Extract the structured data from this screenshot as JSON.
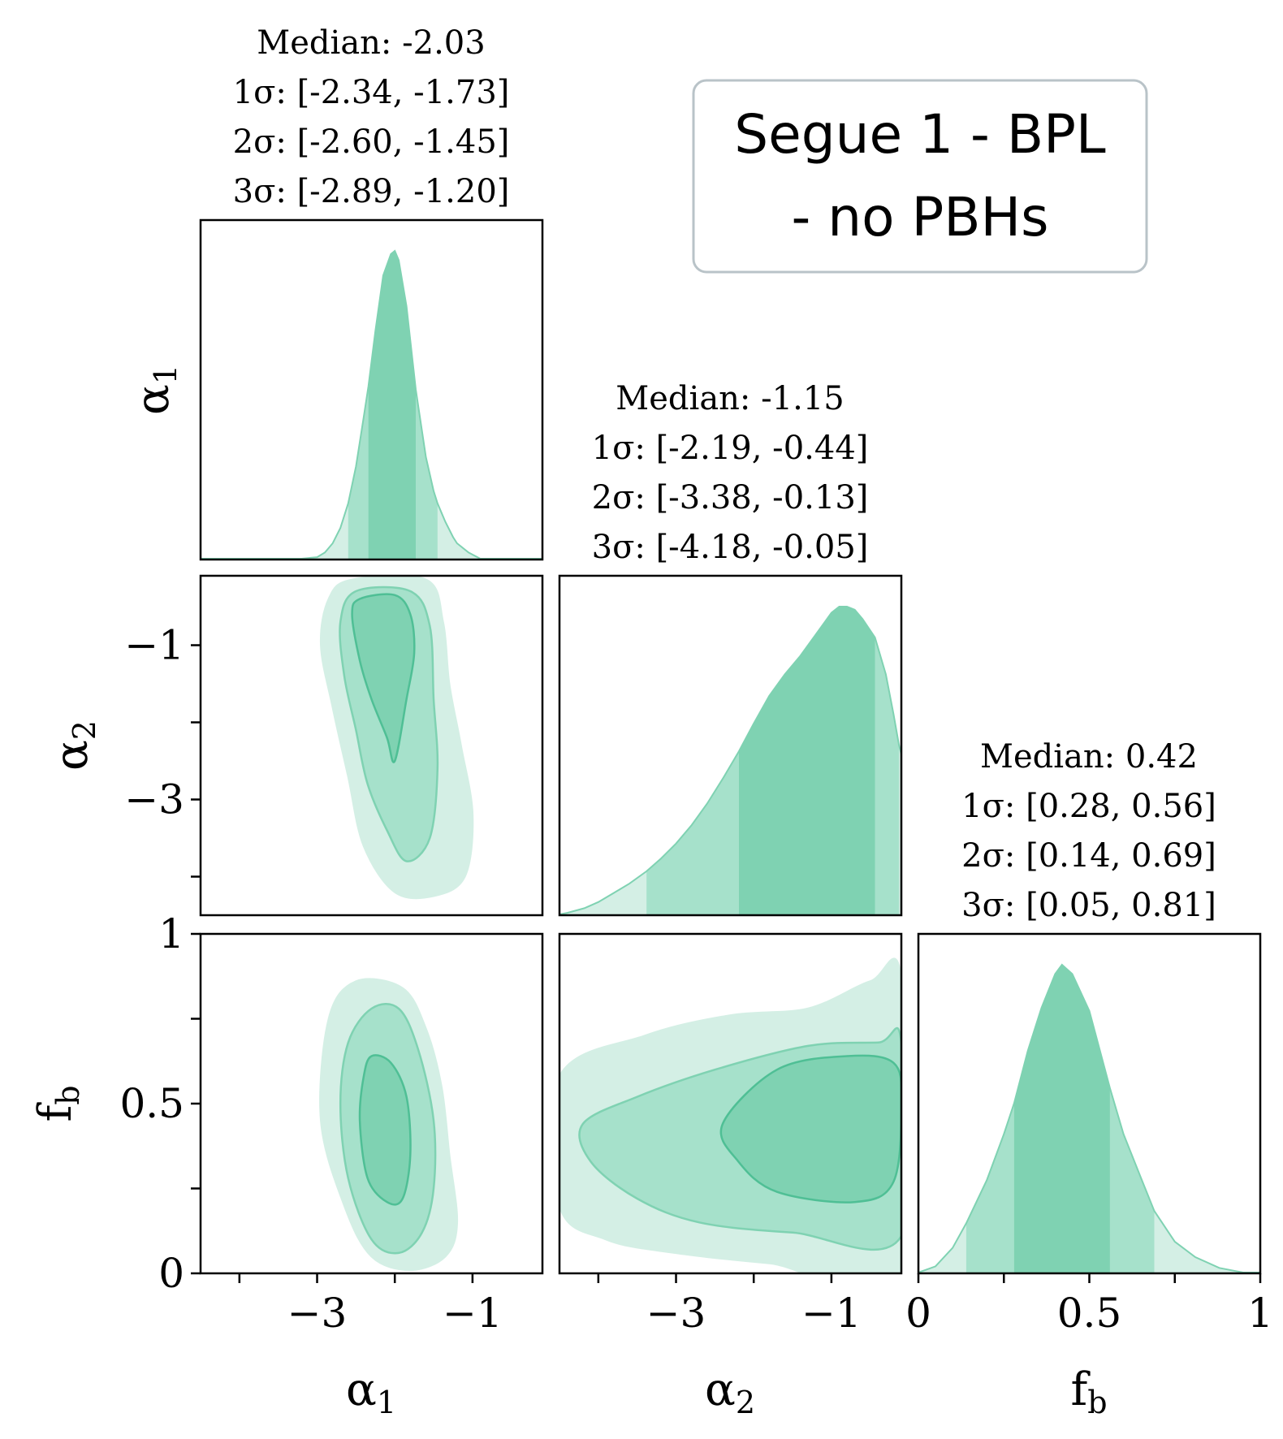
{
  "colors": {
    "fill_3sigma": "#d4efe5",
    "fill_2sigma": "#a6e1cb",
    "fill_1sigma": "#7fd2b2",
    "line_1sigma": "#4fbf95",
    "line_2sigma": "#7fd2b2",
    "legend_border": "#b9c3c8"
  },
  "legend": {
    "line1": "Segue 1 - BPL",
    "line2": "- no PBHs"
  },
  "chart_data": {
    "type": "corner",
    "parameters": [
      {
        "name": "alpha1",
        "label": "α",
        "label_sub": "1",
        "range": [
          -4.5,
          -0.1
        ],
        "ticks": [
          -4,
          -3,
          -2,
          -1
        ],
        "tick_labels": [
          "",
          "−3",
          "",
          "−1"
        ],
        "stats": {
          "median_line": "Median: -2.03",
          "sigma1_line": "1σ: [-2.34, -1.73]",
          "sigma2_line": "2σ: [-2.60, -1.45]",
          "sigma3_line": "3σ: [-2.89, -1.20]",
          "median": -2.03,
          "sigma1": [
            -2.34,
            -1.73
          ],
          "sigma2": [
            -2.6,
            -1.45
          ],
          "sigma3": [
            -2.89,
            -1.2
          ]
        }
      },
      {
        "name": "alpha2",
        "label": "α",
        "label_sub": "2",
        "range": [
          -4.5,
          -0.1
        ],
        "ticks": [
          -4,
          -3,
          -2,
          -1
        ],
        "tick_labels": [
          "",
          "−3",
          "",
          "−1"
        ],
        "stats": {
          "median_line": "Median: -1.15",
          "sigma1_line": "1σ: [-2.19, -0.44]",
          "sigma2_line": "2σ: [-3.38, -0.13]",
          "sigma3_line": "3σ: [-4.18, -0.05]",
          "median": -1.15,
          "sigma1": [
            -2.19,
            -0.44
          ],
          "sigma2": [
            -3.38,
            -0.13
          ],
          "sigma3": [
            -4.18,
            -0.05
          ]
        }
      },
      {
        "name": "fb",
        "label": "f",
        "label_sub": "b",
        "range": [
          0,
          1
        ],
        "ticks": [
          0,
          0.25,
          0.5,
          0.75,
          1
        ],
        "tick_labels": [
          "0",
          "",
          "0.5",
          "",
          "1"
        ],
        "stats": {
          "median_line": "Median: 0.42",
          "sigma1_line": "1σ: [0.28, 0.56]",
          "sigma2_line": "2σ: [0.14, 0.69]",
          "sigma3_line": "3σ: [0.05, 0.81]",
          "median": 0.42,
          "sigma1": [
            0.28,
            0.56
          ],
          "sigma2": [
            0.14,
            0.69
          ],
          "sigma3": [
            0.05,
            0.81
          ]
        }
      }
    ],
    "marginals": [
      {
        "param": "alpha1",
        "x": [
          -4.5,
          -3.2,
          -3.0,
          -2.9,
          -2.8,
          -2.7,
          -2.6,
          -2.5,
          -2.4,
          -2.34,
          -2.25,
          -2.15,
          -2.05,
          -2.0,
          -1.95,
          -1.85,
          -1.73,
          -1.6,
          -1.5,
          -1.45,
          -1.35,
          -1.25,
          -1.2,
          -1.05,
          -0.9,
          -0.1
        ],
        "density": [
          0,
          0,
          0.005,
          0.02,
          0.05,
          0.1,
          0.18,
          0.3,
          0.46,
          0.56,
          0.74,
          0.92,
          0.99,
          1.0,
          0.97,
          0.82,
          0.55,
          0.33,
          0.22,
          0.18,
          0.12,
          0.07,
          0.05,
          0.02,
          0.0,
          0
        ]
      },
      {
        "param": "alpha2",
        "x": [
          -4.5,
          -4.4,
          -4.18,
          -4.0,
          -3.8,
          -3.6,
          -3.38,
          -3.2,
          -3.0,
          -2.8,
          -2.6,
          -2.4,
          -2.19,
          -2.0,
          -1.8,
          -1.6,
          -1.4,
          -1.2,
          -1.0,
          -0.9,
          -0.8,
          -0.7,
          -0.6,
          -0.44,
          -0.3,
          -0.2,
          -0.13,
          -0.05
        ],
        "density": [
          0.0,
          0.005,
          0.02,
          0.04,
          0.07,
          0.1,
          0.14,
          0.18,
          0.23,
          0.29,
          0.36,
          0.44,
          0.53,
          0.62,
          0.71,
          0.78,
          0.84,
          0.91,
          0.98,
          1.0,
          1.0,
          0.99,
          0.96,
          0.9,
          0.78,
          0.65,
          0.55,
          0.47
        ]
      },
      {
        "param": "fb",
        "x": [
          0.0,
          0.05,
          0.1,
          0.14,
          0.2,
          0.25,
          0.28,
          0.32,
          0.36,
          0.4,
          0.42,
          0.45,
          0.5,
          0.56,
          0.6,
          0.65,
          0.69,
          0.75,
          0.81,
          0.88,
          0.95,
          1.0
        ],
        "density": [
          0.0,
          0.02,
          0.08,
          0.16,
          0.3,
          0.45,
          0.55,
          0.72,
          0.86,
          0.97,
          1.0,
          0.97,
          0.85,
          0.6,
          0.45,
          0.31,
          0.2,
          0.1,
          0.05,
          0.015,
          0.0,
          0.0
        ]
      }
    ],
    "joint_2d": [
      {
        "x_param": "alpha1",
        "y_param": "alpha2",
        "levels": [
          {
            "level": "3sigma",
            "points": [
              [
                -2.55,
                -0.15
              ],
              [
                -1.6,
                -0.15
              ],
              [
                -1.38,
                -0.7
              ],
              [
                -1.3,
                -1.5
              ],
              [
                -1.15,
                -2.3
              ],
              [
                -1.0,
                -3.2
              ],
              [
                -1.1,
                -4.0
              ],
              [
                -1.5,
                -4.25
              ],
              [
                -2.0,
                -4.2
              ],
              [
                -2.4,
                -3.6
              ],
              [
                -2.6,
                -2.7
              ],
              [
                -2.8,
                -1.8
              ],
              [
                -2.95,
                -1.0
              ],
              [
                -2.85,
                -0.4
              ]
            ]
          },
          {
            "level": "2sigma",
            "points": [
              [
                -2.5,
                -0.3
              ],
              [
                -1.8,
                -0.3
              ],
              [
                -1.55,
                -0.75
              ],
              [
                -1.5,
                -1.7
              ],
              [
                -1.45,
                -2.6
              ],
              [
                -1.55,
                -3.5
              ],
              [
                -1.85,
                -3.8
              ],
              [
                -2.1,
                -3.4
              ],
              [
                -2.35,
                -2.8
              ],
              [
                -2.5,
                -2.1
              ],
              [
                -2.65,
                -1.4
              ],
              [
                -2.7,
                -0.7
              ]
            ]
          },
          {
            "level": "1sigma",
            "points": [
              [
                -2.45,
                -0.4
              ],
              [
                -2.0,
                -0.35
              ],
              [
                -1.8,
                -0.6
              ],
              [
                -1.75,
                -1.1
              ],
              [
                -1.85,
                -1.7
              ],
              [
                -2.0,
                -2.5
              ],
              [
                -2.1,
                -2.2
              ],
              [
                -2.3,
                -1.7
              ],
              [
                -2.45,
                -1.2
              ],
              [
                -2.55,
                -0.6
              ]
            ]
          }
        ]
      },
      {
        "x_param": "alpha1",
        "y_param": "fb",
        "levels": [
          {
            "level": "3sigma",
            "points": [
              [
                -2.5,
                0.86
              ],
              [
                -1.9,
                0.84
              ],
              [
                -1.6,
                0.72
              ],
              [
                -1.4,
                0.55
              ],
              [
                -1.3,
                0.35
              ],
              [
                -1.2,
                0.15
              ],
              [
                -1.35,
                0.05
              ],
              [
                -1.8,
                0.01
              ],
              [
                -2.3,
                0.05
              ],
              [
                -2.65,
                0.2
              ],
              [
                -2.95,
                0.45
              ],
              [
                -2.85,
                0.75
              ]
            ]
          },
          {
            "level": "2sigma",
            "points": [
              [
                -2.3,
                0.78
              ],
              [
                -1.95,
                0.78
              ],
              [
                -1.7,
                0.66
              ],
              [
                -1.5,
                0.45
              ],
              [
                -1.5,
                0.25
              ],
              [
                -1.65,
                0.12
              ],
              [
                -1.95,
                0.06
              ],
              [
                -2.3,
                0.1
              ],
              [
                -2.6,
                0.28
              ],
              [
                -2.7,
                0.5
              ],
              [
                -2.6,
                0.68
              ]
            ]
          },
          {
            "level": "1sigma",
            "points": [
              [
                -2.3,
                0.64
              ],
              [
                -2.05,
                0.62
              ],
              [
                -1.85,
                0.52
              ],
              [
                -1.8,
                0.35
              ],
              [
                -1.9,
                0.22
              ],
              [
                -2.1,
                0.21
              ],
              [
                -2.35,
                0.28
              ],
              [
                -2.45,
                0.45
              ],
              [
                -2.4,
                0.58
              ]
            ]
          }
        ]
      },
      {
        "x_param": "alpha2",
        "y_param": "fb",
        "levels": [
          {
            "level": "3sigma",
            "points": [
              [
                -4.5,
                0.58
              ],
              [
                -3.4,
                0.7
              ],
              [
                -2.3,
                0.76
              ],
              [
                -1.3,
                0.78
              ],
              [
                -0.5,
                0.86
              ],
              [
                -0.1,
                0.86
              ],
              [
                -0.1,
                0.0
              ],
              [
                -1.8,
                0.03
              ],
              [
                -3.0,
                0.06
              ],
              [
                -3.9,
                0.1
              ],
              [
                -4.5,
                0.2
              ]
            ]
          },
          {
            "level": "2sigma",
            "points": [
              [
                -4.2,
                0.44
              ],
              [
                -3.5,
                0.52
              ],
              [
                -2.5,
                0.6
              ],
              [
                -1.3,
                0.67
              ],
              [
                -0.4,
                0.68
              ],
              [
                -0.1,
                0.68
              ],
              [
                -0.1,
                0.11
              ],
              [
                -1.5,
                0.12
              ],
              [
                -2.7,
                0.15
              ],
              [
                -3.5,
                0.22
              ],
              [
                -4.1,
                0.33
              ]
            ]
          },
          {
            "level": "1sigma",
            "points": [
              [
                -2.4,
                0.44
              ],
              [
                -1.7,
                0.6
              ],
              [
                -0.8,
                0.64
              ],
              [
                -0.2,
                0.62
              ],
              [
                -0.1,
                0.5
              ],
              [
                -0.2,
                0.27
              ],
              [
                -0.7,
                0.21
              ],
              [
                -1.7,
                0.24
              ],
              [
                -2.2,
                0.33
              ]
            ]
          }
        ]
      }
    ]
  }
}
